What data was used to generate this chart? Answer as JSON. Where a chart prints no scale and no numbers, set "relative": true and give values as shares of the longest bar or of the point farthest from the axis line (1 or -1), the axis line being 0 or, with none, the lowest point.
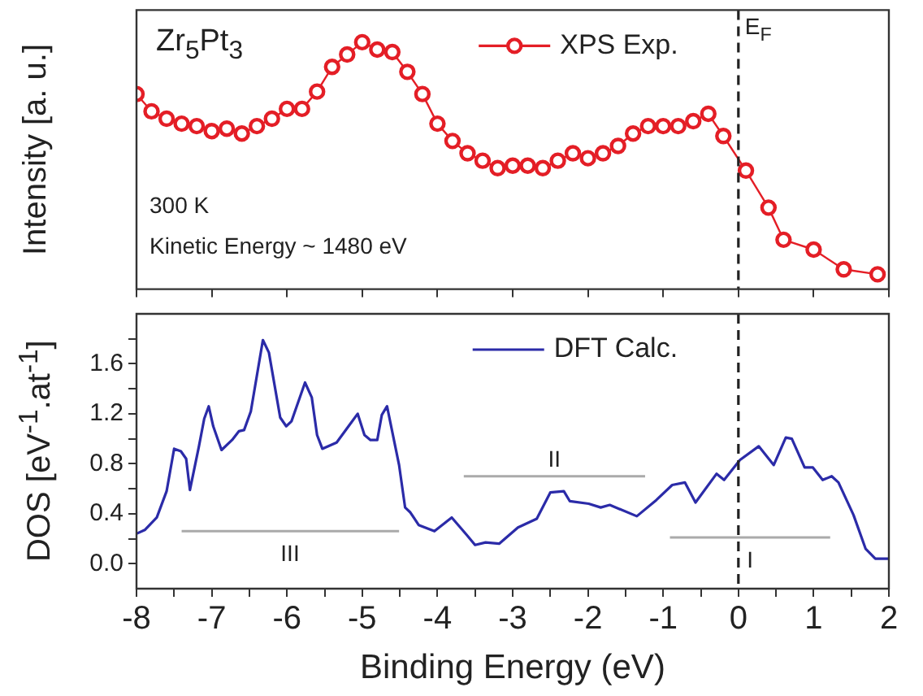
{
  "chart_data": [
    {
      "type": "line",
      "ylabel": "Intensity [a. u.]",
      "relative": true,
      "xlim": [
        -8,
        2
      ],
      "xticks": [
        -8,
        -7,
        -6,
        -5,
        -4,
        -3,
        -2,
        -1,
        0,
        1,
        2
      ],
      "tick_labels": false,
      "legend": "top right",
      "marker": "circle",
      "annotations": [
        "Zr$_{5}$Pt$_{3}$",
        "300 K",
        "Kinetic Energy ~ 1480 eV"
      ],
      "ref_lines": [
        {
          "axis": "x",
          "value": 0,
          "label": "E$_{F}$",
          "line_style": "dashed",
          "color": "#222222"
        }
      ],
      "series": [
        {
          "name": "XPS Exp.",
          "color": "#e41e26",
          "x": [
            -8.0,
            -7.8,
            -7.6,
            -7.4,
            -7.2,
            -7.0,
            -6.8,
            -6.6,
            -6.4,
            -6.2,
            -6.0,
            -5.8,
            -5.6,
            -5.4,
            -5.2,
            -5.0,
            -4.8,
            -4.6,
            -4.4,
            -4.2,
            -4.0,
            -3.8,
            -3.6,
            -3.4,
            -3.2,
            -3.0,
            -2.8,
            -2.6,
            -2.4,
            -2.2,
            -2.0,
            -1.8,
            -1.6,
            -1.4,
            -1.2,
            -1.0,
            -0.8,
            -0.6,
            -0.4,
            -0.2,
            0.1,
            0.4,
            0.6,
            1.0,
            1.4,
            1.85
          ],
          "values": [
            0.79,
            0.72,
            0.69,
            0.67,
            0.66,
            0.64,
            0.65,
            0.63,
            0.66,
            0.69,
            0.73,
            0.73,
            0.8,
            0.9,
            0.95,
            1.0,
            0.97,
            0.96,
            0.88,
            0.79,
            0.67,
            0.6,
            0.55,
            0.52,
            0.49,
            0.5,
            0.5,
            0.49,
            0.52,
            0.55,
            0.53,
            0.55,
            0.58,
            0.63,
            0.66,
            0.66,
            0.66,
            0.68,
            0.71,
            0.62,
            0.48,
            0.33,
            0.2,
            0.16,
            0.08,
            0.06
          ]
        }
      ]
    },
    {
      "type": "line",
      "xlabel": "Binding Energy (eV)",
      "ylabel": "DOS [eV$^{-1}$.at$^{-1}$]",
      "xlim": [
        -8,
        2
      ],
      "ylim": [
        -0.2,
        2.0
      ],
      "xticks": [
        -8,
        {
          "value": -7.5,
          "label": null
        },
        -7,
        {
          "value": -6.5,
          "label": null
        },
        -6,
        {
          "value": -5.5,
          "label": null
        },
        -5,
        {
          "value": -4.5,
          "label": null
        },
        -4,
        {
          "value": -3.5,
          "label": null
        },
        -3,
        {
          "value": -2.5,
          "label": null
        },
        -2,
        {
          "value": -1.5,
          "label": null
        },
        -1,
        {
          "value": -0.5,
          "label": null
        },
        0,
        {
          "value": 0.5,
          "label": null
        },
        1,
        {
          "value": 1.5,
          "label": null
        },
        2
      ],
      "yticks": [
        {
          "value": 0,
          "label": "0.0"
        },
        {
          "value": 0.2,
          "label": null
        },
        {
          "value": 0.4,
          "label": "0.4"
        },
        {
          "value": 0.6,
          "label": null
        },
        {
          "value": 0.8,
          "label": "0.8"
        },
        {
          "value": 1.0,
          "label": null
        },
        {
          "value": 1.2,
          "label": "1.2"
        },
        {
          "value": 1.4,
          "label": null
        },
        {
          "value": 1.6,
          "label": "1.6"
        },
        {
          "value": 1.8,
          "label": null
        }
      ],
      "legend": "top right",
      "annotations": [
        "III",
        "II",
        "I"
      ],
      "ref_lines": [
        {
          "axis": "x",
          "value": 0,
          "line_style": "dashed",
          "color": "#222222"
        }
      ],
      "series": [
        {
          "name": "DFT Calc.",
          "color": "#2b2ba8",
          "x": [
            -8.0,
            -7.89,
            -7.73,
            -7.6,
            -7.5,
            -7.41,
            -7.34,
            -7.29,
            -7.17,
            -7.1,
            -7.04,
            -6.98,
            -6.87,
            -6.73,
            -6.64,
            -6.57,
            -6.48,
            -6.32,
            -6.24,
            -6.09,
            -6.01,
            -5.94,
            -5.76,
            -5.67,
            -5.6,
            -5.53,
            -5.34,
            -5.17,
            -5.06,
            -4.97,
            -4.89,
            -4.8,
            -4.74,
            -4.67,
            -4.51,
            -4.43,
            -4.36,
            -4.25,
            -4.04,
            -3.81,
            -3.61,
            -3.5,
            -3.36,
            -3.18,
            -2.93,
            -2.68,
            -2.5,
            -2.32,
            -2.24,
            -1.99,
            -1.83,
            -1.71,
            -1.35,
            -1.09,
            -0.88,
            -0.71,
            -0.57,
            -0.29,
            -0.19,
            0.02,
            0.27,
            0.47,
            0.63,
            0.71,
            0.88,
            0.99,
            1.12,
            1.24,
            1.33,
            1.53,
            1.69,
            1.82,
            2.0
          ],
          "values": [
            0.24,
            0.27,
            0.37,
            0.58,
            0.92,
            0.9,
            0.84,
            0.59,
            0.94,
            1.16,
            1.26,
            1.1,
            0.91,
            0.99,
            1.06,
            1.07,
            1.22,
            1.79,
            1.69,
            1.17,
            1.1,
            1.14,
            1.45,
            1.33,
            1.03,
            0.92,
            0.97,
            1.11,
            1.2,
            1.03,
            0.99,
            0.99,
            1.19,
            1.26,
            0.79,
            0.45,
            0.41,
            0.31,
            0.26,
            0.37,
            0.23,
            0.15,
            0.17,
            0.16,
            0.29,
            0.36,
            0.57,
            0.58,
            0.5,
            0.48,
            0.45,
            0.47,
            0.38,
            0.51,
            0.63,
            0.65,
            0.49,
            0.72,
            0.67,
            0.83,
            0.94,
            0.79,
            1.01,
            1.0,
            0.77,
            0.77,
            0.67,
            0.7,
            0.65,
            0.39,
            0.12,
            0.04,
            0.04
          ]
        },
        {
          "color": "#aaaaaa",
          "x": [
            -7.4,
            -4.51
          ],
          "values": [
            0.26,
            0.26
          ]
        },
        {
          "color": "#aaaaaa",
          "x": [
            -3.65,
            -1.24
          ],
          "values": [
            0.7,
            0.7
          ]
        },
        {
          "color": "#aaaaaa",
          "x": [
            -0.91,
            1.22
          ],
          "values": [
            0.21,
            0.21
          ]
        }
      ]
    }
  ]
}
